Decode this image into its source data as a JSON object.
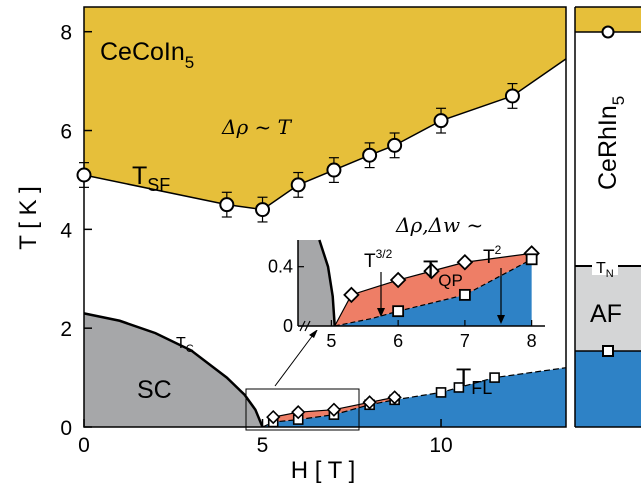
{
  "colors": {
    "yellow": "#e6bf3a",
    "gray": "#a6a7a9",
    "blue": "#2e82c6",
    "salmon": "#ee7e66",
    "lightgray": "#d4d5d6"
  },
  "labels": {
    "compound_main": "CeCoIn",
    "compound_main_sub": "5",
    "compound_right": "CeRhIn",
    "compound_right_sub": "5",
    "rho_linear": "Δρ ~ T",
    "tsf_main": "T",
    "tsf_sub": "SF",
    "tc": "T",
    "tc_sub": "C",
    "sc": "SC",
    "tfl_main": "T",
    "tfl_sub": "FL",
    "inset_title": "Δρ,Δw ~",
    "t32": "T",
    "t32_sup": "3/2",
    "t2": "T",
    "t2_sup": "2",
    "tqp": "T",
    "tqp_sub": "QP",
    "tn": "T",
    "tn_sub": "N",
    "af": "AF"
  },
  "chart_data": [
    {
      "type": "area",
      "title": "",
      "xlabel": "H [ T ]",
      "ylabel": "T [ K ]",
      "xlim": [
        0,
        13.5
      ],
      "ylim": [
        0,
        8.5
      ],
      "xticks": [
        0,
        5,
        10
      ],
      "yticks": [
        0,
        2,
        4,
        6,
        8
      ],
      "series": [
        {
          "name": "TSF",
          "x": [
            0,
            4,
            5,
            6,
            7,
            8,
            8.7,
            10,
            12
          ],
          "y": [
            5.1,
            4.5,
            4.4,
            4.9,
            5.2,
            5.5,
            5.7,
            6.2,
            6.7
          ],
          "yerr": [
            0.25,
            0.25,
            0.25,
            0.25,
            0.25,
            0.25,
            0.25,
            0.25,
            0.25
          ]
        },
        {
          "name": "TC",
          "x": [
            0,
            1,
            2,
            3,
            4,
            4.5,
            4.8,
            5.0
          ],
          "y": [
            2.3,
            2.15,
            1.9,
            1.55,
            1.0,
            0.65,
            0.35,
            0.0
          ]
        },
        {
          "name": "TFL",
          "x": [
            5.3,
            6,
            7,
            8,
            8.7,
            10,
            10.5,
            11.5
          ],
          "y": [
            0.1,
            0.15,
            0.25,
            0.45,
            0.55,
            0.7,
            0.8,
            1.0
          ]
        },
        {
          "name": "TQP",
          "x": [
            5.3,
            6,
            7,
            8,
            8.7
          ],
          "y": [
            0.2,
            0.3,
            0.35,
            0.5,
            0.6
          ]
        }
      ]
    },
    {
      "type": "area",
      "title": "",
      "xlim": [
        4.5,
        8.2
      ],
      "ylim": [
        0,
        0.58
      ],
      "xticks": [
        5,
        6,
        7,
        8
      ],
      "yticks": [
        0,
        0.4
      ],
      "series": [
        {
          "name": "TQP",
          "x": [
            5.3,
            6,
            6.5,
            7,
            8
          ],
          "y": [
            0.21,
            0.31,
            0.37,
            0.43,
            0.49
          ]
        },
        {
          "name": "TFL",
          "x": [
            6,
            7,
            8
          ],
          "y": [
            0.1,
            0.21,
            0.45
          ]
        }
      ]
    },
    {
      "type": "area",
      "title": "",
      "ylim": [
        0,
        8.5
      ],
      "series": [
        {
          "name": "TN",
          "y": [
            3.8
          ]
        },
        {
          "name": "CeRhIn5-points",
          "y": [
            8.0,
            1.5
          ]
        }
      ]
    }
  ]
}
